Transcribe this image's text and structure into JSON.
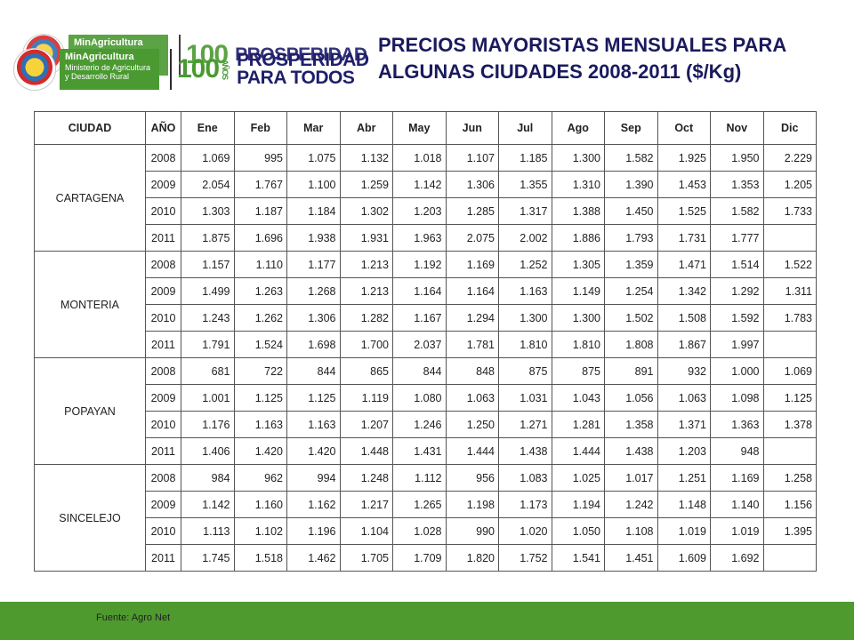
{
  "header": {
    "ministry_name": "MinAgricultura",
    "ministry_sub": "Ministerio de Agricultura y Desarrollo Rural",
    "centenary": "100",
    "centenary_word": "AÑOS",
    "slogan_line1": "PROSPERIDAD",
    "slogan_line2": "PARA TODOS",
    "title_line1": "PRECIOS MAYORISTAS MENSUALES PARA",
    "title_line2": "ALGUNAS CIUDADES 2008-2011 ($/Kg)"
  },
  "table": {
    "columns": [
      "CIUDAD",
      "AÑO",
      "Ene",
      "Feb",
      "Mar",
      "Abr",
      "May",
      "Jun",
      "Jul",
      "Ago",
      "Sep",
      "Oct",
      "Nov",
      "Dic"
    ],
    "cities": [
      {
        "name": "CARTAGENA",
        "rows": [
          {
            "year": "2008",
            "values": [
              "1.069",
              "995",
              "1.075",
              "1.132",
              "1.018",
              "1.107",
              "1.185",
              "1.300",
              "1.582",
              "1.925",
              "1.950",
              "2.229"
            ]
          },
          {
            "year": "2009",
            "values": [
              "2.054",
              "1.767",
              "1.100",
              "1.259",
              "1.142",
              "1.306",
              "1.355",
              "1.310",
              "1.390",
              "1.453",
              "1.353",
              "1.205"
            ]
          },
          {
            "year": "2010",
            "values": [
              "1.303",
              "1.187",
              "1.184",
              "1.302",
              "1.203",
              "1.285",
              "1.317",
              "1.388",
              "1.450",
              "1.525",
              "1.582",
              "1.733"
            ]
          },
          {
            "year": "2011",
            "values": [
              "1.875",
              "1.696",
              "1.938",
              "1.931",
              "1.963",
              "2.075",
              "2.002",
              "1.886",
              "1.793",
              "1.731",
              "1.777",
              ""
            ]
          }
        ]
      },
      {
        "name": "MONTERIA",
        "rows": [
          {
            "year": "2008",
            "values": [
              "1.157",
              "1.110",
              "1.177",
              "1.213",
              "1.192",
              "1.169",
              "1.252",
              "1.305",
              "1.359",
              "1.471",
              "1.514",
              "1.522"
            ]
          },
          {
            "year": "2009",
            "values": [
              "1.499",
              "1.263",
              "1.268",
              "1.213",
              "1.164",
              "1.164",
              "1.163",
              "1.149",
              "1.254",
              "1.342",
              "1.292",
              "1.311"
            ]
          },
          {
            "year": "2010",
            "values": [
              "1.243",
              "1.262",
              "1.306",
              "1.282",
              "1.167",
              "1.294",
              "1.300",
              "1.300",
              "1.502",
              "1.508",
              "1.592",
              "1.783"
            ]
          },
          {
            "year": "2011",
            "values": [
              "1.791",
              "1.524",
              "1.698",
              "1.700",
              "2.037",
              "1.781",
              "1.810",
              "1.810",
              "1.808",
              "1.867",
              "1.997",
              ""
            ]
          }
        ]
      },
      {
        "name": "POPAYAN",
        "rows": [
          {
            "year": "2008",
            "values": [
              "681",
              "722",
              "844",
              "865",
              "844",
              "848",
              "875",
              "875",
              "891",
              "932",
              "1.000",
              "1.069"
            ]
          },
          {
            "year": "2009",
            "values": [
              "1.001",
              "1.125",
              "1.125",
              "1.119",
              "1.080",
              "1.063",
              "1.031",
              "1.043",
              "1.056",
              "1.063",
              "1.098",
              "1.125"
            ]
          },
          {
            "year": "2010",
            "values": [
              "1.176",
              "1.163",
              "1.163",
              "1.207",
              "1.246",
              "1.250",
              "1.271",
              "1.281",
              "1.358",
              "1.371",
              "1.363",
              "1.378"
            ]
          },
          {
            "year": "2011",
            "values": [
              "1.406",
              "1.420",
              "1.420",
              "1.448",
              "1.431",
              "1.444",
              "1.438",
              "1.444",
              "1.438",
              "1.203",
              "948",
              ""
            ]
          }
        ]
      },
      {
        "name": "SINCELEJO",
        "rows": [
          {
            "year": "2008",
            "values": [
              "984",
              "962",
              "994",
              "1.248",
              "1.112",
              "956",
              "1.083",
              "1.025",
              "1.017",
              "1.251",
              "1.169",
              "1.258"
            ]
          },
          {
            "year": "2009",
            "values": [
              "1.142",
              "1.160",
              "1.162",
              "1.217",
              "1.265",
              "1.198",
              "1.173",
              "1.194",
              "1.242",
              "1.148",
              "1.140",
              "1.156"
            ]
          },
          {
            "year": "2010",
            "values": [
              "1.113",
              "1.102",
              "1.196",
              "1.104",
              "1.028",
              "990",
              "1.020",
              "1.050",
              "1.108",
              "1.019",
              "1.019",
              "1.395"
            ]
          },
          {
            "year": "2011",
            "values": [
              "1.745",
              "1.518",
              "1.462",
              "1.705",
              "1.709",
              "1.820",
              "1.752",
              "1.541",
              "1.451",
              "1.609",
              "1.692",
              ""
            ]
          }
        ]
      }
    ]
  },
  "footer": {
    "source": "Fuente: Agro Net",
    "bar_color": "#4e9a2f"
  },
  "colors": {
    "title": "#1a1a5e",
    "brand_green": "#4a9a31",
    "brand_navy": "#1f1f6b"
  }
}
